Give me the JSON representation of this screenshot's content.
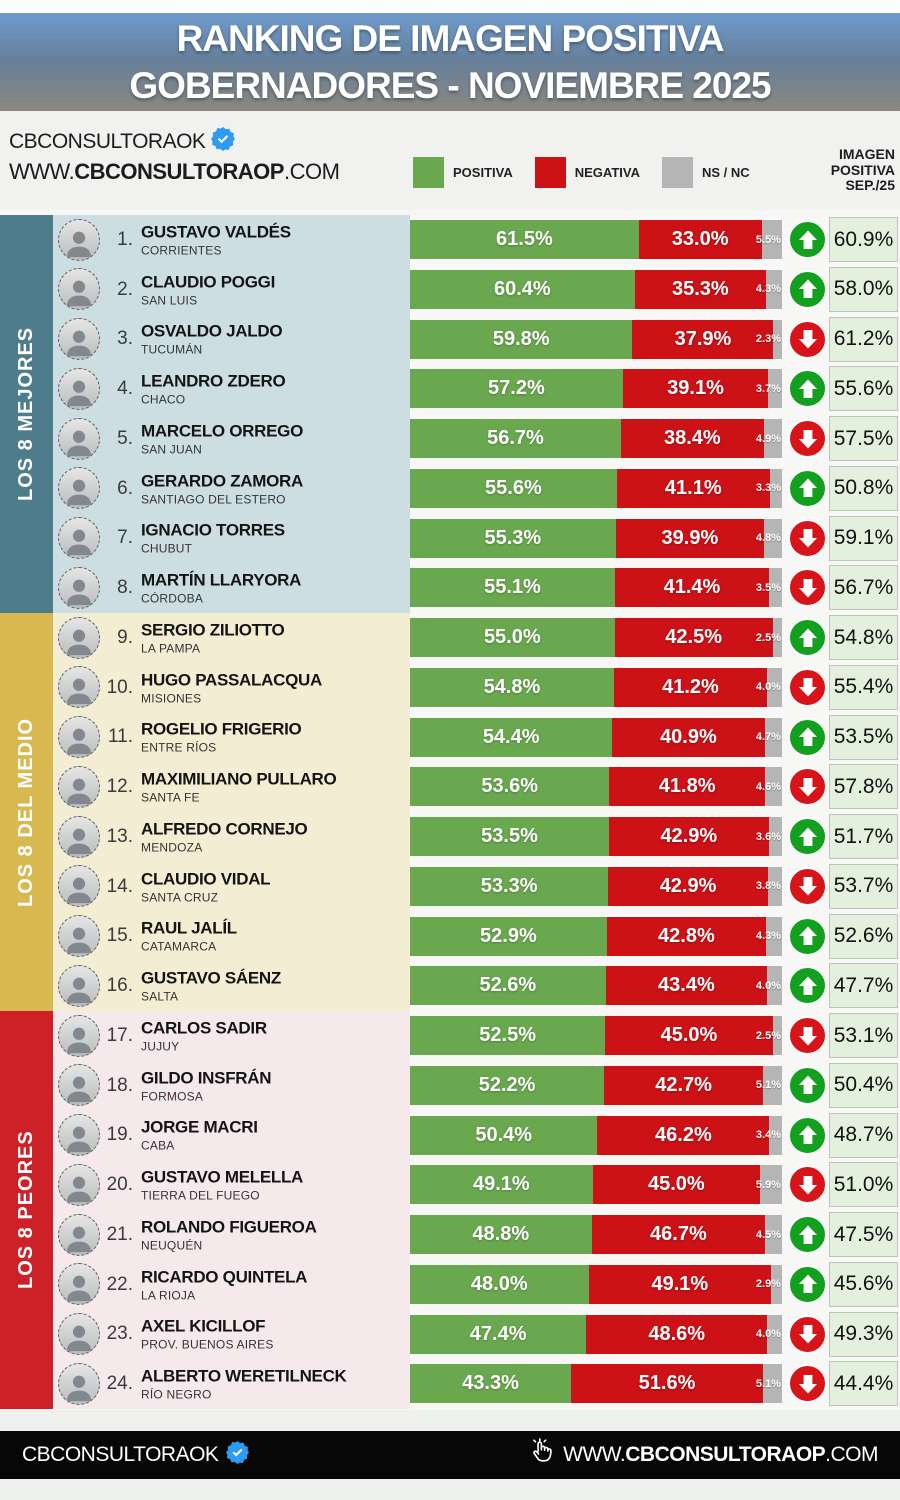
{
  "header": {
    "title_line1": "RANKING DE IMAGEN POSITIVA",
    "title_line2": "GOBERNADORES - NOVIEMBRE 2025"
  },
  "brand": {
    "name": "CBCONSULTORAOK",
    "url_prefix": "WWW.",
    "url_bold": "CBCONSULTORAOP",
    "url_suffix": ".COM"
  },
  "legend": [
    {
      "label": "POSITIVA",
      "color": "#6aa84f"
    },
    {
      "label": "NEGATIVA",
      "color": "#cc1117"
    },
    {
      "label": "NS / NC",
      "color": "#b5b5b5"
    }
  ],
  "prev_header": {
    "line1": "IMAGEN",
    "line2": "POSITIVA",
    "line3": "SEP./25"
  },
  "colors": {
    "positiva": "#6aa84f",
    "negativa": "#cc1117",
    "nsnc": "#b5b5b5",
    "trend_up": "#12a01e",
    "trend_down": "#d8141b",
    "prev_cell_bg": "#e3f0dd",
    "prev_cell_border": "#bcc7ba"
  },
  "sections": [
    {
      "label": "LOS 8 MEJORES",
      "sidebar_color": "#4d7d8b",
      "panel_color": "#cddee2",
      "rows": [
        {
          "rank": 1,
          "name": "GUSTAVO VALDÉS",
          "province": "CORRIENTES",
          "positiva": 61.5,
          "negativa": 33.0,
          "nsnc": 5.5,
          "trend": "up",
          "prev": 60.9
        },
        {
          "rank": 2,
          "name": "CLAUDIO POGGI",
          "province": "SAN LUIS",
          "positiva": 60.4,
          "negativa": 35.3,
          "nsnc": 4.3,
          "trend": "up",
          "prev": 58.0
        },
        {
          "rank": 3,
          "name": "OSVALDO JALDO",
          "province": "TUCUMÁN",
          "positiva": 59.8,
          "negativa": 37.9,
          "nsnc": 2.3,
          "trend": "down",
          "prev": 61.2
        },
        {
          "rank": 4,
          "name": "LEANDRO ZDERO",
          "province": "CHACO",
          "positiva": 57.2,
          "negativa": 39.1,
          "nsnc": 3.7,
          "trend": "up",
          "prev": 55.6
        },
        {
          "rank": 5,
          "name": "MARCELO ORREGO",
          "province": "SAN JUAN",
          "positiva": 56.7,
          "negativa": 38.4,
          "nsnc": 4.9,
          "trend": "down",
          "prev": 57.5
        },
        {
          "rank": 6,
          "name": "GERARDO ZAMORA",
          "province": "SANTIAGO DEL ESTERO",
          "positiva": 55.6,
          "negativa": 41.1,
          "nsnc": 3.3,
          "trend": "up",
          "prev": 50.8
        },
        {
          "rank": 7,
          "name": "IGNACIO TORRES",
          "province": "CHUBUT",
          "positiva": 55.3,
          "negativa": 39.9,
          "nsnc": 4.8,
          "trend": "down",
          "prev": 59.1
        },
        {
          "rank": 8,
          "name": "MARTÍN LLARYORA",
          "province": "CÓRDOBA",
          "positiva": 55.1,
          "negativa": 41.4,
          "nsnc": 3.5,
          "trend": "down",
          "prev": 56.7
        }
      ]
    },
    {
      "label": "LOS 8 DEL MEDIO",
      "sidebar_color": "#d8b851",
      "panel_color": "#f3edd4",
      "rows": [
        {
          "rank": 9,
          "name": "SERGIO ZILIOTTO",
          "province": "LA PAMPA",
          "positiva": 55.0,
          "negativa": 42.5,
          "nsnc": 2.5,
          "trend": "up",
          "prev": 54.8
        },
        {
          "rank": 10,
          "name": "HUGO PASSALACQUA",
          "province": "MISIONES",
          "positiva": 54.8,
          "negativa": 41.2,
          "nsnc": 4.0,
          "trend": "down",
          "prev": 55.4
        },
        {
          "rank": 11,
          "name": "ROGELIO FRIGERIO",
          "province": "ENTRE RÍOS",
          "positiva": 54.4,
          "negativa": 40.9,
          "nsnc": 4.7,
          "trend": "up",
          "prev": 53.5
        },
        {
          "rank": 12,
          "name": "MAXIMILIANO PULLARO",
          "province": "SANTA FE",
          "positiva": 53.6,
          "negativa": 41.8,
          "nsnc": 4.6,
          "trend": "down",
          "prev": 57.8
        },
        {
          "rank": 13,
          "name": "ALFREDO CORNEJO",
          "province": "MENDOZA",
          "positiva": 53.5,
          "negativa": 42.9,
          "nsnc": 3.6,
          "trend": "up",
          "prev": 51.7
        },
        {
          "rank": 14,
          "name": "CLAUDIO VIDAL",
          "province": "SANTA CRUZ",
          "positiva": 53.3,
          "negativa": 42.9,
          "nsnc": 3.8,
          "trend": "down",
          "prev": 53.7
        },
        {
          "rank": 15,
          "name": "RAUL JALÍL",
          "province": "CATAMARCA",
          "positiva": 52.9,
          "negativa": 42.8,
          "nsnc": 4.3,
          "trend": "up",
          "prev": 52.6
        },
        {
          "rank": 16,
          "name": "GUSTAVO SÁENZ",
          "province": "SALTA",
          "positiva": 52.6,
          "negativa": 43.4,
          "nsnc": 4.0,
          "trend": "up",
          "prev": 47.7
        }
      ]
    },
    {
      "label": "LOS 8 PEORES",
      "sidebar_color": "#ce2127",
      "panel_color": "#f5e9ec",
      "rows": [
        {
          "rank": 17,
          "name": "CARLOS SADIR",
          "province": "JUJUY",
          "positiva": 52.5,
          "negativa": 45.0,
          "nsnc": 2.5,
          "trend": "down",
          "prev": 53.1
        },
        {
          "rank": 18,
          "name": "GILDO INSFRÁN",
          "province": "FORMOSA",
          "positiva": 52.2,
          "negativa": 42.7,
          "nsnc": 5.1,
          "trend": "up",
          "prev": 50.4
        },
        {
          "rank": 19,
          "name": "JORGE MACRI",
          "province": "CABA",
          "positiva": 50.4,
          "negativa": 46.2,
          "nsnc": 3.4,
          "trend": "up",
          "prev": 48.7
        },
        {
          "rank": 20,
          "name": "GUSTAVO MELELLA",
          "province": "TIERRA DEL FUEGO",
          "positiva": 49.1,
          "negativa": 45.0,
          "nsnc": 5.9,
          "trend": "down",
          "prev": 51.0
        },
        {
          "rank": 21,
          "name": "ROLANDO FIGUEROA",
          "province": "NEUQUÉN",
          "positiva": 48.8,
          "negativa": 46.7,
          "nsnc": 4.5,
          "trend": "up",
          "prev": 47.5
        },
        {
          "rank": 22,
          "name": "RICARDO QUINTELA",
          "province": "LA RIOJA",
          "positiva": 48.0,
          "negativa": 49.1,
          "nsnc": 2.9,
          "trend": "up",
          "prev": 45.6
        },
        {
          "rank": 23,
          "name": "AXEL KICILLOF",
          "province": "PROV. BUENOS AIRES",
          "positiva": 47.4,
          "negativa": 48.6,
          "nsnc": 4.0,
          "trend": "down",
          "prev": 49.3
        },
        {
          "rank": 24,
          "name": "ALBERTO WERETILNECK",
          "province": "RÍO NEGRO",
          "positiva": 43.3,
          "negativa": 51.6,
          "nsnc": 5.1,
          "trend": "down",
          "prev": 44.4
        }
      ]
    }
  ],
  "footer": {
    "brand": "CBCONSULTORAOK",
    "url_prefix": "WWW.",
    "url_bold": "CBCONSULTORAOP",
    "url_suffix": ".COM"
  },
  "chart_data": {
    "type": "bar",
    "stacked": true,
    "unit": "%",
    "title": "RANKING DE IMAGEN POSITIVA GOBERNADORES - NOVIEMBRE 2025",
    "legend_position": "top",
    "categories": [
      "GUSTAVO VALDÉS",
      "CLAUDIO POGGI",
      "OSVALDO JALDO",
      "LEANDRO ZDERO",
      "MARCELO ORREGO",
      "GERARDO ZAMORA",
      "IGNACIO TORRES",
      "MARTÍN LLARYORA",
      "SERGIO ZILIOTTO",
      "HUGO PASSALACQUA",
      "ROGELIO FRIGERIO",
      "MAXIMILIANO PULLARO",
      "ALFREDO CORNEJO",
      "CLAUDIO VIDAL",
      "RAUL JALÍL",
      "GUSTAVO SÁENZ",
      "CARLOS SADIR",
      "GILDO INSFRÁN",
      "JORGE MACRI",
      "GUSTAVO MELELLA",
      "ROLANDO FIGUEROA",
      "RICARDO QUINTELA",
      "AXEL KICILLOF",
      "ALBERTO WERETILNECK"
    ],
    "provinces": [
      "CORRIENTES",
      "SAN LUIS",
      "TUCUMÁN",
      "CHACO",
      "SAN JUAN",
      "SANTIAGO DEL ESTERO",
      "CHUBUT",
      "CÓRDOBA",
      "LA PAMPA",
      "MISIONES",
      "ENTRE RÍOS",
      "SANTA FE",
      "MENDOZA",
      "SANTA CRUZ",
      "CATAMARCA",
      "SALTA",
      "JUJUY",
      "FORMOSA",
      "CABA",
      "TIERRA DEL FUEGO",
      "NEUQUÉN",
      "LA RIOJA",
      "PROV. BUENOS AIRES",
      "RÍO NEGRO"
    ],
    "series": [
      {
        "name": "POSITIVA",
        "color": "#6aa84f",
        "values": [
          61.5,
          60.4,
          59.8,
          57.2,
          56.7,
          55.6,
          55.3,
          55.1,
          55.0,
          54.8,
          54.4,
          53.6,
          53.5,
          53.3,
          52.9,
          52.6,
          52.5,
          52.2,
          50.4,
          49.1,
          48.8,
          48.0,
          47.4,
          43.3
        ]
      },
      {
        "name": "NEGATIVA",
        "color": "#cc1117",
        "values": [
          33.0,
          35.3,
          37.9,
          39.1,
          38.4,
          41.1,
          39.9,
          41.4,
          42.5,
          41.2,
          40.9,
          41.8,
          42.9,
          42.9,
          42.8,
          43.4,
          45.0,
          42.7,
          46.2,
          45.0,
          46.7,
          49.1,
          48.6,
          51.6
        ]
      },
      {
        "name": "NS / NC",
        "color": "#b5b5b5",
        "values": [
          5.5,
          4.3,
          2.3,
          3.7,
          4.9,
          3.3,
          4.8,
          3.5,
          2.5,
          4.0,
          4.7,
          4.6,
          3.6,
          3.8,
          4.3,
          4.0,
          2.5,
          5.1,
          3.4,
          5.9,
          4.5,
          2.9,
          4.0,
          5.1
        ]
      },
      {
        "name": "IMAGEN POSITIVA SEP./25",
        "values": [
          60.9,
          58.0,
          61.2,
          55.6,
          57.5,
          50.8,
          59.1,
          56.7,
          54.8,
          55.4,
          53.5,
          57.8,
          51.7,
          53.7,
          52.6,
          47.7,
          53.1,
          50.4,
          48.7,
          51.0,
          47.5,
          45.6,
          49.3,
          44.4
        ]
      }
    ],
    "trend_vs_previous": [
      "up",
      "up",
      "down",
      "up",
      "down",
      "up",
      "down",
      "down",
      "up",
      "down",
      "up",
      "down",
      "up",
      "down",
      "up",
      "up",
      "down",
      "up",
      "up",
      "down",
      "up",
      "up",
      "down",
      "down"
    ],
    "xlim": [
      0,
      100
    ]
  }
}
